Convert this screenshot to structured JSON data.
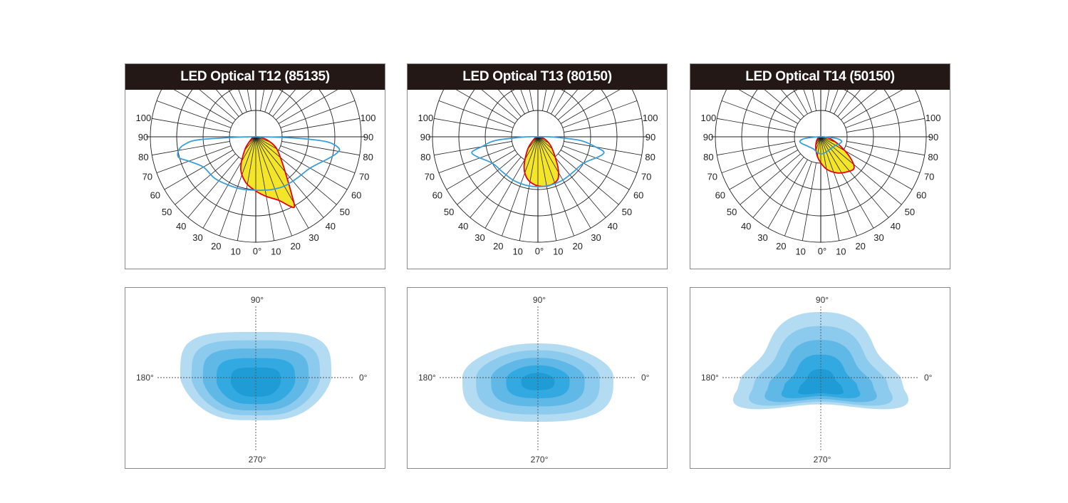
{
  "panels": [
    {
      "title": "LED Optical T12 (85135)",
      "polar": {
        "shape": "t12"
      },
      "isolux": {
        "shape": "t12"
      }
    },
    {
      "title": "LED Optical T13 (80150)",
      "polar": {
        "shape": "t13"
      },
      "isolux": {
        "shape": "t13"
      }
    },
    {
      "title": "LED Optical T14 (50150)",
      "polar": {
        "shape": "t14"
      },
      "isolux": {
        "shape": "t14"
      }
    }
  ],
  "polar_labels": {
    "side": [
      "100",
      "90",
      "80",
      "70",
      "60",
      "50",
      "40",
      "30",
      "20",
      "10"
    ],
    "zero": "0°"
  },
  "isolux_labels": {
    "top": "90°",
    "left": "180°",
    "right": "0°",
    "bottom": "270°"
  },
  "colors": {
    "title_bg": "#231815",
    "grid": "#222222",
    "red_curve": "#e60012",
    "yellow_fill": "#f5e529",
    "blue_curve": "#3a9fd8",
    "isolux_levels": [
      "#b3dcf2",
      "#8ccbee",
      "#5fb8e6",
      "#33a9e1",
      "#1f9bd6"
    ]
  }
}
